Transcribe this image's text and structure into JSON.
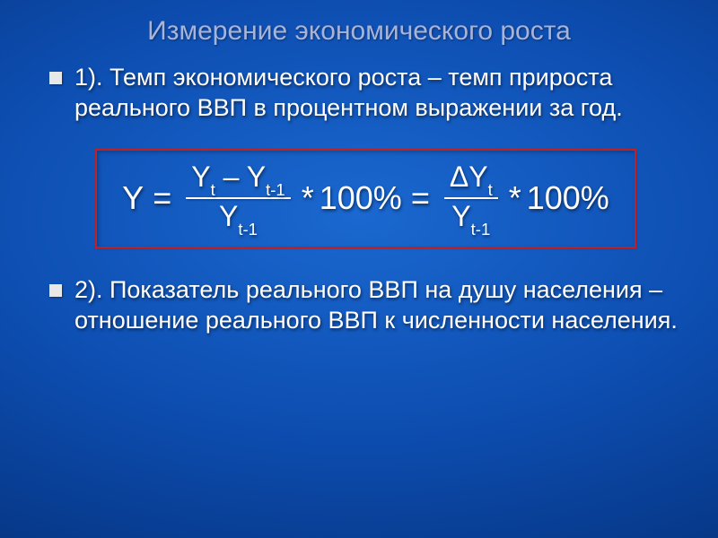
{
  "title": "Измерение экономического роста",
  "bullets": {
    "b1": "1). Темп экономического роста – темп прироста реального ВВП в процентном выражении за год.",
    "b2": "2). Показатель реального ВВП на душу населения – отношение реального ВВП к численности населения."
  },
  "formula": {
    "lhs": "Y",
    "eq": "=",
    "frac1_num_a": "Y",
    "frac1_num_asub": "t",
    "frac1_num_minus": " – ",
    "frac1_num_b": "Y",
    "frac1_num_bsub": "t-1",
    "frac1_den": "Y",
    "frac1_den_sub": "t-1",
    "mult": "*",
    "hundred": "100%",
    "frac2_num_delta": "ΔY",
    "frac2_num_sub": "t",
    "frac2_den": "Y",
    "frac2_den_sub": "t-1"
  },
  "colors": {
    "title_color": "#a8b3d8",
    "text_color": "#ffffff",
    "box_border": "#c22020",
    "bullet_square": "#e8e8e8"
  }
}
